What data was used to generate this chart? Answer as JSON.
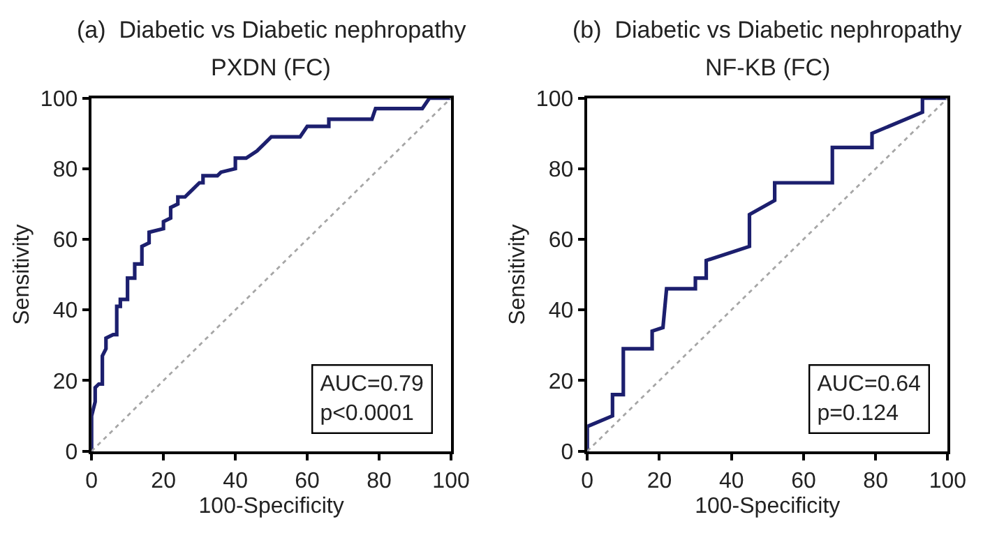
{
  "chart_data": [
    {
      "type": "line",
      "title": "(a)  Diabetic vs Diabetic nephropathy",
      "subtitle": "PXDN (FC)",
      "xlabel": "100-Specificity",
      "ylabel": "Sensitivity",
      "xlim": [
        0,
        100
      ],
      "ylim": [
        0,
        100
      ],
      "xticks": [
        0,
        20,
        40,
        60,
        80,
        100
      ],
      "yticks": [
        0,
        20,
        40,
        60,
        80,
        100
      ],
      "marker": "none",
      "series": [
        {
          "color": "#1c1f6e",
          "line_style": "solid",
          "x": [
            0,
            0,
            1,
            1,
            2,
            3,
            3,
            4,
            4,
            6,
            7,
            7,
            8,
            8,
            10,
            10,
            12,
            12,
            14,
            14,
            16,
            16,
            20,
            20,
            22,
            22,
            24,
            24,
            26,
            27,
            28,
            30,
            31,
            31,
            35,
            36,
            40,
            40,
            43,
            46,
            48,
            50,
            58,
            60,
            66,
            66,
            78,
            79,
            92,
            94,
            100
          ],
          "values": [
            0,
            10,
            14,
            18,
            19,
            19,
            27,
            29,
            32,
            33,
            33,
            41,
            41,
            43,
            43,
            49,
            49,
            53,
            53,
            58,
            59,
            62,
            63,
            65,
            66,
            69,
            70,
            72,
            72,
            73,
            74,
            76,
            76,
            78,
            78,
            79,
            80,
            83,
            83,
            85,
            87,
            89,
            89,
            92,
            92,
            94,
            94,
            97,
            97,
            100,
            100
          ]
        },
        {
          "color": "#a6a6a6",
          "line_style": "dotted",
          "x": [
            0,
            100
          ],
          "values": [
            0,
            100
          ]
        }
      ],
      "annotations": [
        "AUC=0.79",
        "p<0.0001"
      ]
    },
    {
      "type": "line",
      "title": "(b)  Diabetic vs Diabetic nephropathy",
      "subtitle": "NF-KB (FC)",
      "xlabel": "100-Specificity",
      "ylabel": "Sensitivity",
      "xlim": [
        0,
        100
      ],
      "ylim": [
        0,
        100
      ],
      "xticks": [
        0,
        20,
        40,
        60,
        80,
        100
      ],
      "yticks": [
        0,
        20,
        40,
        60,
        80,
        100
      ],
      "marker": "none",
      "series": [
        {
          "color": "#1c1f6e",
          "line_style": "solid",
          "x": [
            0,
            0,
            7,
            7,
            10,
            10,
            18,
            18,
            21,
            22,
            30,
            30,
            33,
            33,
            45,
            45,
            52,
            52,
            68,
            68,
            79,
            79,
            93,
            93,
            100
          ],
          "values": [
            0,
            7,
            10,
            16,
            16,
            29,
            29,
            34,
            35,
            46,
            46,
            49,
            49,
            54,
            58,
            67,
            71,
            76,
            76,
            86,
            86,
            90,
            96,
            100,
            100
          ]
        },
        {
          "color": "#a6a6a6",
          "line_style": "dotted",
          "x": [
            0,
            100
          ],
          "values": [
            0,
            100
          ]
        }
      ],
      "annotations": [
        "AUC=0.64",
        "p=0.124"
      ]
    }
  ]
}
